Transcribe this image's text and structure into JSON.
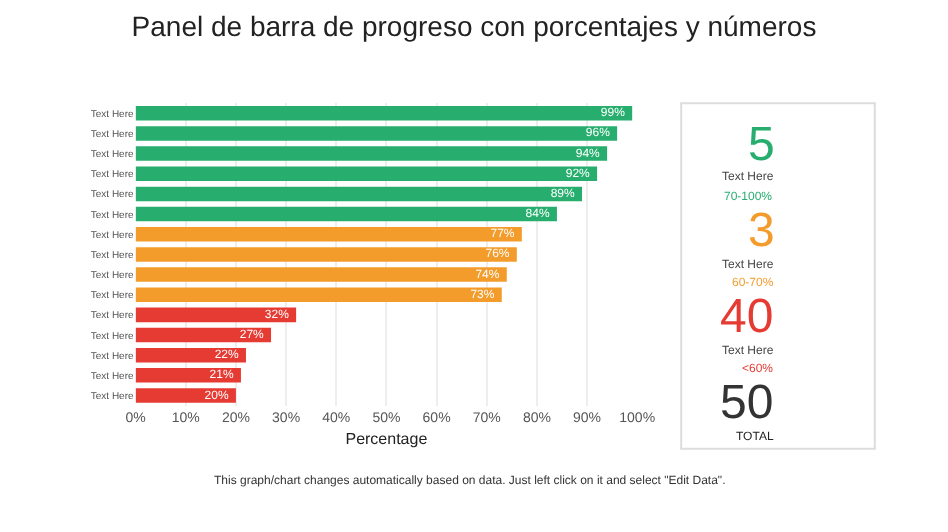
{
  "chart_data": [
    {
      "type": "bar",
      "title": "Panel de barra de progreso con porcentajes y números",
      "orientation": "horizontal",
      "categories": [
        "Text Here",
        "Text Here",
        "Text Here",
        "Text Here",
        "Text Here",
        "Text Here",
        "Text Here",
        "Text Here",
        "Text Here",
        "Text Here",
        "Text Here",
        "Text Here",
        "Text Here",
        "Text Here",
        "Text Here"
      ],
      "values": [
        99,
        96,
        94,
        92,
        89,
        84,
        77,
        76,
        74,
        73,
        32,
        27,
        22,
        21,
        20
      ],
      "colors": [
        "#27ae6e",
        "#27ae6e",
        "#27ae6e",
        "#27ae6e",
        "#27ae6e",
        "#27ae6e",
        "#f39c2c",
        "#f39c2c",
        "#f39c2c",
        "#f39c2c",
        "#e53b33",
        "#e53b33",
        "#e53b33",
        "#e53b33",
        "#e53b33"
      ],
      "value_labels": [
        "99%",
        "96%",
        "94%",
        "92%",
        "89%",
        "84%",
        "77%",
        "76%",
        "74%",
        "73%",
        "32%",
        "27%",
        "22%",
        "21%",
        "20%"
      ],
      "xlabel": "Percentage",
      "xlim": [
        0,
        100
      ],
      "xticks": [
        {
          "value": 0,
          "label": "0%"
        },
        {
          "value": 10,
          "label": "10%"
        },
        {
          "value": 20,
          "label": "20%"
        },
        {
          "value": 30,
          "label": "30%"
        },
        {
          "value": 40,
          "label": "40%"
        },
        {
          "value": 50,
          "label": "50%"
        },
        {
          "value": 60,
          "label": "60%"
        },
        {
          "value": 70,
          "label": "70%"
        },
        {
          "value": 80,
          "label": "80%"
        },
        {
          "value": 90,
          "label": "90%"
        },
        {
          "value": 100,
          "label": "100%"
        }
      ],
      "grid": "x",
      "annotations": [
        "This graph/chart changes automatically based on data. Just left click on it and select \"Edit Data\"."
      ]
    },
    {
      "type": "other",
      "annotations": [
        "5",
        "Text Here",
        "70-100%",
        "3",
        "Text Here",
        "60-70%",
        "40",
        "Text Here",
        "<60%",
        "50",
        "TOTAL"
      ],
      "colors": [
        "#27ae6e",
        "#444444",
        "#27ae6e",
        "#f39c2c",
        "#444444",
        "#f39c2c",
        "#e53b33",
        "#444444",
        "#e53b33",
        "#333333",
        "#222222"
      ]
    }
  ]
}
